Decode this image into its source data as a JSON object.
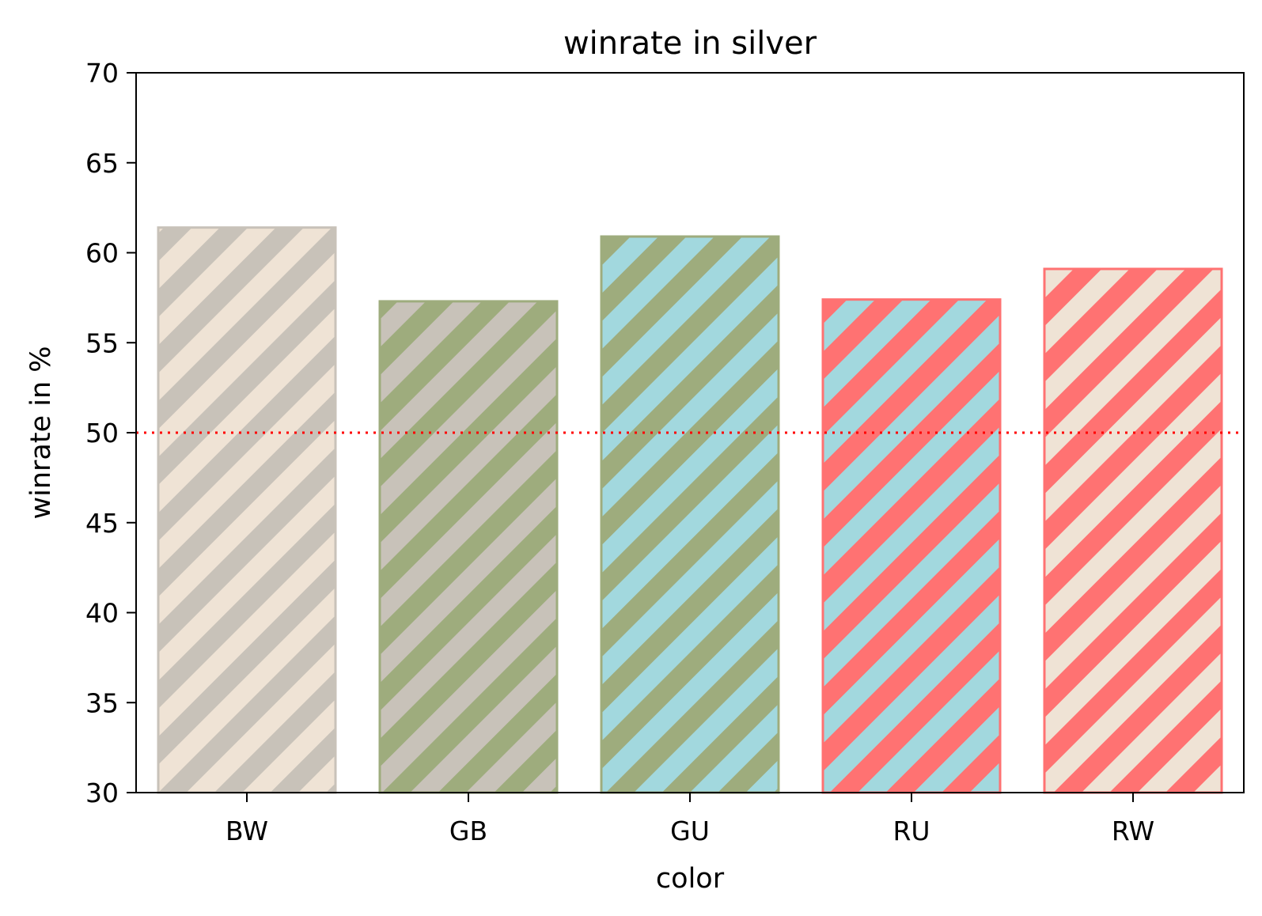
{
  "chart_data": {
    "type": "bar",
    "title": "winrate in silver",
    "xlabel": "color",
    "ylabel": "winrate in %",
    "categories": [
      "BW",
      "GB",
      "GU",
      "RU",
      "RW"
    ],
    "values": [
      61.4,
      57.3,
      60.9,
      57.4,
      59.1
    ],
    "ylim": [
      30,
      70
    ],
    "yticks": [
      30,
      35,
      40,
      45,
      50,
      55,
      60,
      65,
      70
    ],
    "ytick_labels": [
      "30",
      "35",
      "40",
      "45",
      "50",
      "55",
      "60",
      "65",
      "70"
    ],
    "reference_line": {
      "value": 50,
      "style": "dotted",
      "color": "#ff0000"
    },
    "grid": false,
    "bar_patterns": [
      {
        "stripe": "#c8c2b9",
        "fill": "#efe3d5"
      },
      {
        "stripe": "#9eac7d",
        "fill": "#c8c2b9"
      },
      {
        "stripe": "#9eac7d",
        "fill": "#a2d8de"
      },
      {
        "stripe": "#ff7272",
        "fill": "#a2d8de"
      },
      {
        "stripe": "#ff7272",
        "fill": "#efe3d5"
      }
    ]
  }
}
